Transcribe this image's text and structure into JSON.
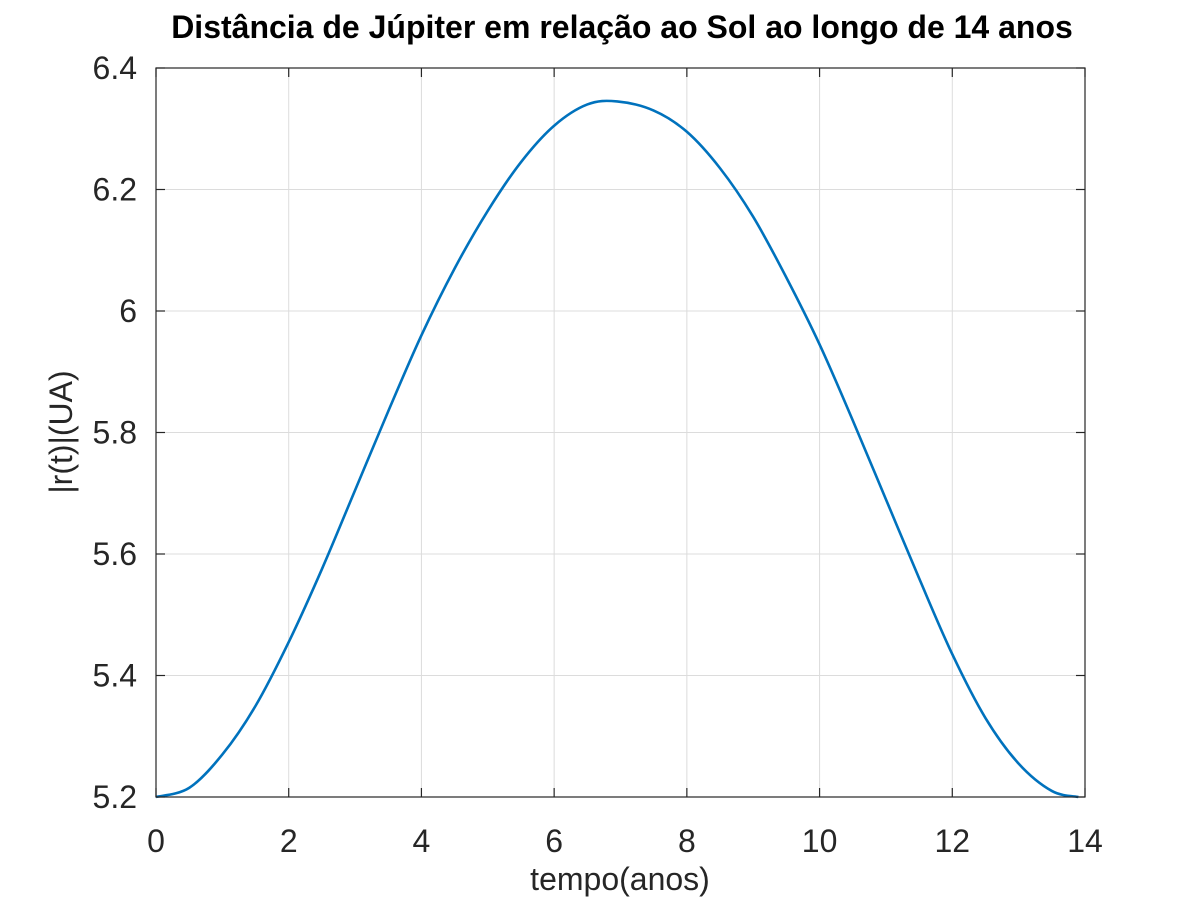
{
  "chart_data": {
    "type": "line",
    "title": "Distância de Júpiter em relação ao Sol ao longo de 14 anos",
    "xlabel": "tempo(anos)",
    "ylabel": "|r(t)|(UA)",
    "xlim": [
      0,
      14
    ],
    "ylim": [
      5.2,
      6.4
    ],
    "xticks": [
      0,
      2,
      4,
      6,
      8,
      10,
      12,
      14
    ],
    "xtick_labels": [
      "0",
      "2",
      "4",
      "6",
      "8",
      "10",
      "12",
      "14"
    ],
    "yticks": [
      5.2,
      5.4,
      5.6,
      5.8,
      6.0,
      6.2,
      6.4
    ],
    "ytick_labels": [
      "5.2",
      "5.4",
      "5.6",
      "5.8",
      "6",
      "6.2",
      "6.4"
    ],
    "grid": true,
    "series": [
      {
        "color": "#0072BD",
        "x": [
          0,
          0.5,
          1,
          1.5,
          2,
          2.5,
          3,
          3.5,
          4,
          4.5,
          5,
          5.5,
          6,
          6.5,
          6.95,
          7.5,
          8,
          8.5,
          9,
          9.5,
          10,
          10.5,
          11,
          11.5,
          12,
          12.5,
          13,
          13.5,
          13.9
        ],
        "y": [
          5.2,
          5.215,
          5.27,
          5.35,
          5.455,
          5.575,
          5.705,
          5.835,
          5.96,
          6.07,
          6.165,
          6.245,
          6.305,
          6.34,
          6.345,
          6.33,
          6.295,
          6.235,
          6.155,
          6.055,
          5.945,
          5.82,
          5.69,
          5.56,
          5.435,
          5.33,
          5.255,
          5.21,
          5.2
        ]
      }
    ]
  }
}
